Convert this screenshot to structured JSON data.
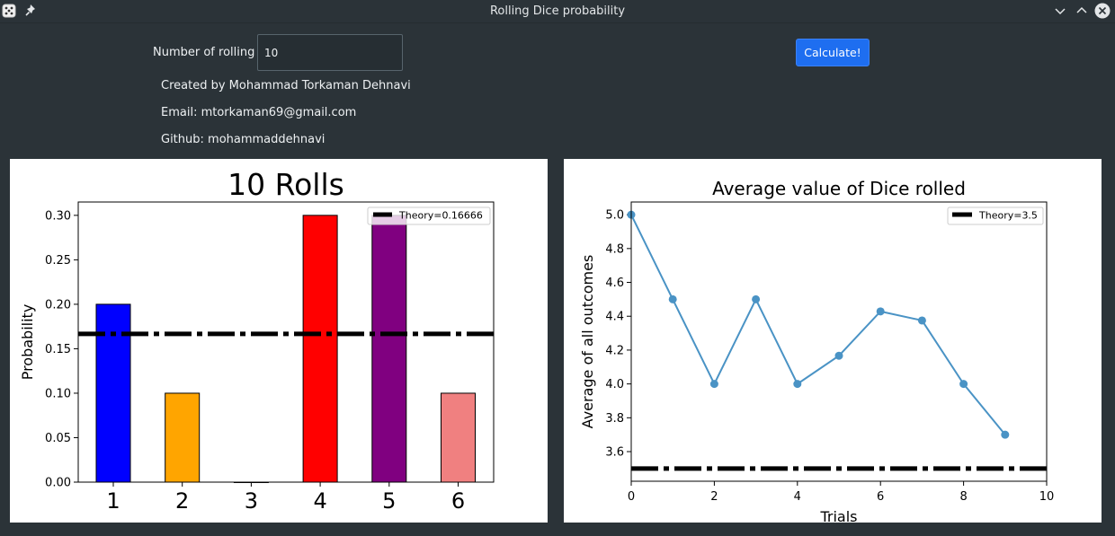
{
  "window": {
    "title": "Rolling Dice probability"
  },
  "form": {
    "rolls_label": "Number of rolling",
    "rolls_value": "10",
    "calculate_label": "Calculate!"
  },
  "info": {
    "created_by": "Created by Mohammad Torkaman Dehnavi",
    "email": "Email: mtorkaman69@gmail.com",
    "github": "Github: mohammaddehnavi"
  },
  "chart_data": [
    {
      "type": "bar",
      "title": "10 Rolls",
      "ylabel": "Probability",
      "categories": [
        "1",
        "2",
        "3",
        "4",
        "5",
        "6"
      ],
      "values": [
        0.2,
        0.1,
        0.0,
        0.3,
        0.3,
        0.1
      ],
      "colors": [
        "#0000ff",
        "#ffa500",
        "#008000",
        "#ff0000",
        "#800080",
        "#f08080"
      ],
      "ylim": [
        0,
        0.315
      ],
      "yticks": [
        "0.00",
        "0.05",
        "0.10",
        "0.15",
        "0.20",
        "0.25",
        "0.30"
      ],
      "reference_line": {
        "label": "Theory=0.16666",
        "value": 0.16666,
        "style": "dashdot",
        "color": "#000000"
      },
      "legend": "top-right"
    },
    {
      "type": "line",
      "title": "Average value of Dice rolled",
      "xlabel": "Trials",
      "ylabel": "Average of all outcomes",
      "x": [
        0,
        1,
        2,
        3,
        4,
        5,
        6,
        7,
        8,
        9
      ],
      "y": [
        5.0,
        4.5,
        4.0,
        4.5,
        4.0,
        4.1667,
        4.4286,
        4.375,
        4.0,
        3.7
      ],
      "line_color": "#4a93c5",
      "xlim": [
        0,
        10
      ],
      "ylim": [
        3.425,
        5.075
      ],
      "xticks": [
        "0",
        "2",
        "4",
        "6",
        "8",
        "10"
      ],
      "yticks": [
        "3.6",
        "3.8",
        "4.0",
        "4.2",
        "4.4",
        "4.6",
        "4.8",
        "5.0"
      ],
      "reference_line": {
        "label": "Theory=3.5",
        "value": 3.5,
        "style": "dashdot",
        "color": "#000000"
      },
      "legend": "top-right"
    }
  ]
}
